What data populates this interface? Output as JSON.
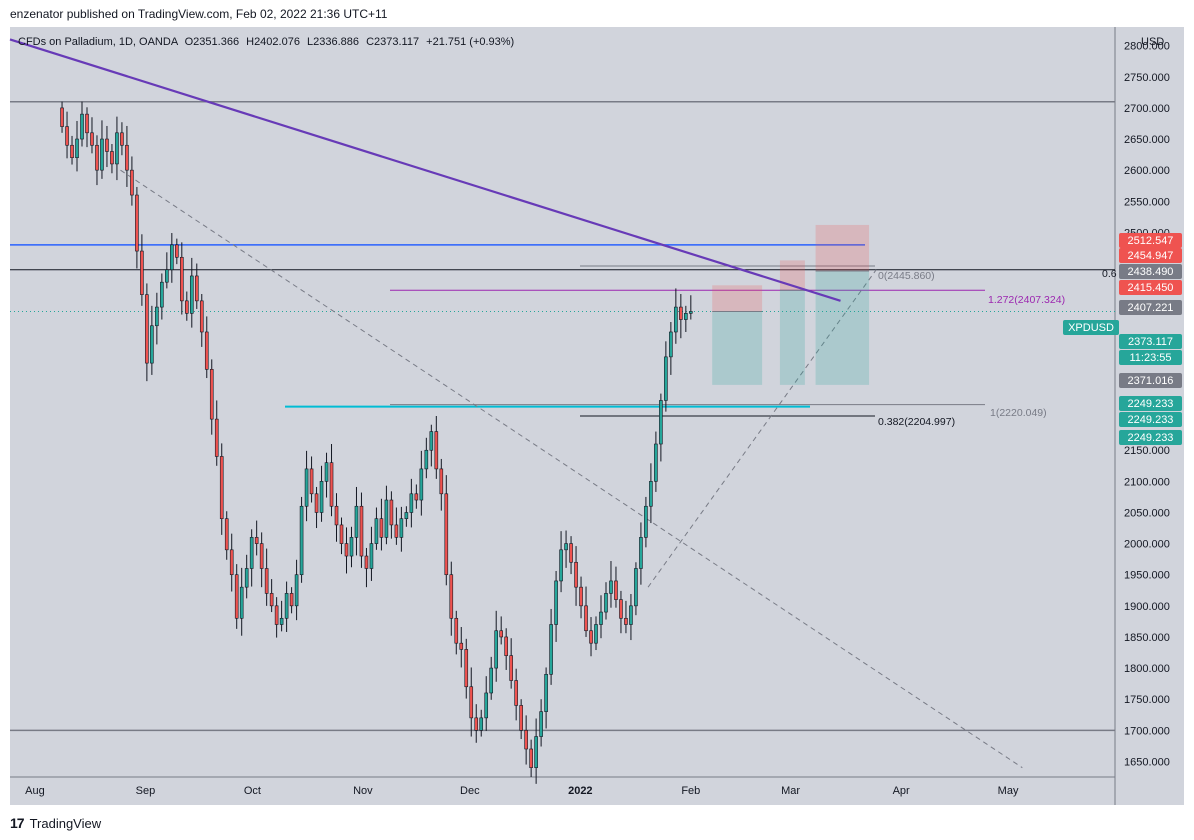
{
  "header": {
    "text": "enzenator published on TradingView.com, Feb 02, 2022 21:36 UTC+11"
  },
  "footer": {
    "brand": "TradingView",
    "logo_glyph": "17"
  },
  "colors": {
    "background": "#d1d4dc",
    "up": "#26a69a",
    "down": "#ef5350",
    "trendline": "#673ab7",
    "blue_line": "#2962ff",
    "cyan_line": "#00bcd4"
  },
  "chart_data": {
    "type": "candlestick",
    "legend": {
      "symbol": "CFDs on Palladium, 1D, OANDA",
      "o": "O2351.366",
      "h": "H2402.076",
      "l": "L2336.886",
      "c": "C2373.117",
      "chg": "+21.751 (+0.93%)"
    },
    "currency": "USD",
    "y_ticks": [
      "2800.000",
      "2750.000",
      "2700.000",
      "2650.000",
      "2600.000",
      "2550.000",
      "2500.000",
      "2300.000",
      "2150.000",
      "2100.000",
      "2050.000",
      "2000.000",
      "1950.000",
      "1900.000",
      "1850.000",
      "1800.000",
      "1750.000",
      "1700.000",
      "1650.000"
    ],
    "y_tick_values": [
      2800,
      2750,
      2700,
      2650,
      2600,
      2550,
      2500,
      2300,
      2150,
      2100,
      2050,
      2000,
      1950,
      1900,
      1850,
      1800,
      1750,
      1700,
      1650
    ],
    "ylim": [
      1625,
      2830
    ],
    "x_labels": [
      "Aug",
      "Sep",
      "Oct",
      "Nov",
      "Dec",
      "2022",
      "Feb",
      "Mar",
      "Apr",
      "May"
    ],
    "x_label_dates": [
      "2021-08-01",
      "2021-09-01",
      "2021-10-01",
      "2021-11-01",
      "2021-12-01",
      "2022-01-01",
      "2022-02-01",
      "2022-03-01",
      "2022-04-01",
      "2022-05-01"
    ],
    "xlim": [
      "2021-07-25",
      "2022-05-31"
    ],
    "closes": [
      2670,
      2640,
      2620,
      2650,
      2690,
      2660,
      2640,
      2600,
      2650,
      2630,
      2610,
      2660,
      2640,
      2600,
      2560,
      2470,
      2400,
      2290,
      2350,
      2380,
      2420,
      2440,
      2480,
      2460,
      2390,
      2370,
      2430,
      2390,
      2340,
      2280,
      2200,
      2140,
      2040,
      1990,
      1950,
      1880,
      1930,
      1960,
      2010,
      2000,
      1960,
      1920,
      1900,
      1870,
      1880,
      1920,
      1900,
      1950,
      2060,
      2120,
      2080,
      2050,
      2100,
      2130,
      2060,
      2030,
      2000,
      1980,
      2010,
      2060,
      1980,
      1960,
      2000,
      2040,
      2010,
      2070,
      2030,
      2010,
      2040,
      2050,
      2080,
      2070,
      2120,
      2150,
      2180,
      2120,
      2080,
      1950,
      1880,
      1840,
      1830,
      1770,
      1720,
      1700,
      1720,
      1760,
      1800,
      1860,
      1850,
      1820,
      1780,
      1740,
      1700,
      1670,
      1640,
      1690,
      1730,
      1790,
      1870,
      1940,
      1990,
      2000,
      1970,
      1930,
      1900,
      1860,
      1840,
      1870,
      1890,
      1920,
      1940,
      1910,
      1880,
      1870,
      1900,
      1960,
      2010,
      2060,
      2100,
      2160,
      2230,
      2300,
      2340,
      2380,
      2360,
      2370,
      2373
    ],
    "price_labels": [
      {
        "value": "2512.547",
        "kind": "down"
      },
      {
        "value": "2454.947",
        "kind": "down"
      },
      {
        "value": "2438.490",
        "kind": "gray"
      },
      {
        "value": "2415.450",
        "kind": "down"
      },
      {
        "value": "2407.221",
        "kind": "gray"
      },
      {
        "value": "XPDUSD",
        "kind": "up"
      },
      {
        "value": "2373.117",
        "kind": "up"
      },
      {
        "value": "11:23:55",
        "kind": "up"
      },
      {
        "value": "2371.016",
        "kind": "gray"
      },
      {
        "value": "2249.233",
        "kind": "up"
      },
      {
        "value": "2249.233",
        "kind": "up"
      },
      {
        "value": "2249.233",
        "kind": "up"
      }
    ],
    "annotations": {
      "fib_0": "0(2445.860)",
      "fib_1272": "1.272(2407.324)",
      "fib_1": "1(2220.049)",
      "fib_0382": "0.382(2204.997)",
      "edge_label": "0.6"
    },
    "levels": {
      "top_gray": 2710,
      "bottom_gray": 1700,
      "blue": 2480,
      "black": 2440,
      "purple_h": 2407,
      "cyan": 2220,
      "black_low": 2205,
      "current": 2373
    },
    "trendline": {
      "from": [
        "2021-07-25",
        2810
      ],
      "to": [
        "2022-03-15",
        2390
      ]
    },
    "dashed_down": {
      "from": [
        "2021-08-25",
        2600
      ],
      "to": [
        "2022-05-05",
        1640
      ]
    },
    "dashed_up": {
      "from": [
        "2022-01-20",
        1930
      ],
      "to": [
        "2022-03-25",
        2440
      ]
    },
    "positions": [
      {
        "start": "2022-02-07",
        "end": "2022-02-21",
        "entry": 2373,
        "stop": 2415,
        "target": 2255
      },
      {
        "start": "2022-02-26",
        "end": "2022-03-05",
        "entry": 2407,
        "stop": 2455,
        "target": 2255
      },
      {
        "start": "2022-03-08",
        "end": "2022-03-23",
        "entry": 2438,
        "stop": 2512,
        "target": 2255
      }
    ]
  }
}
